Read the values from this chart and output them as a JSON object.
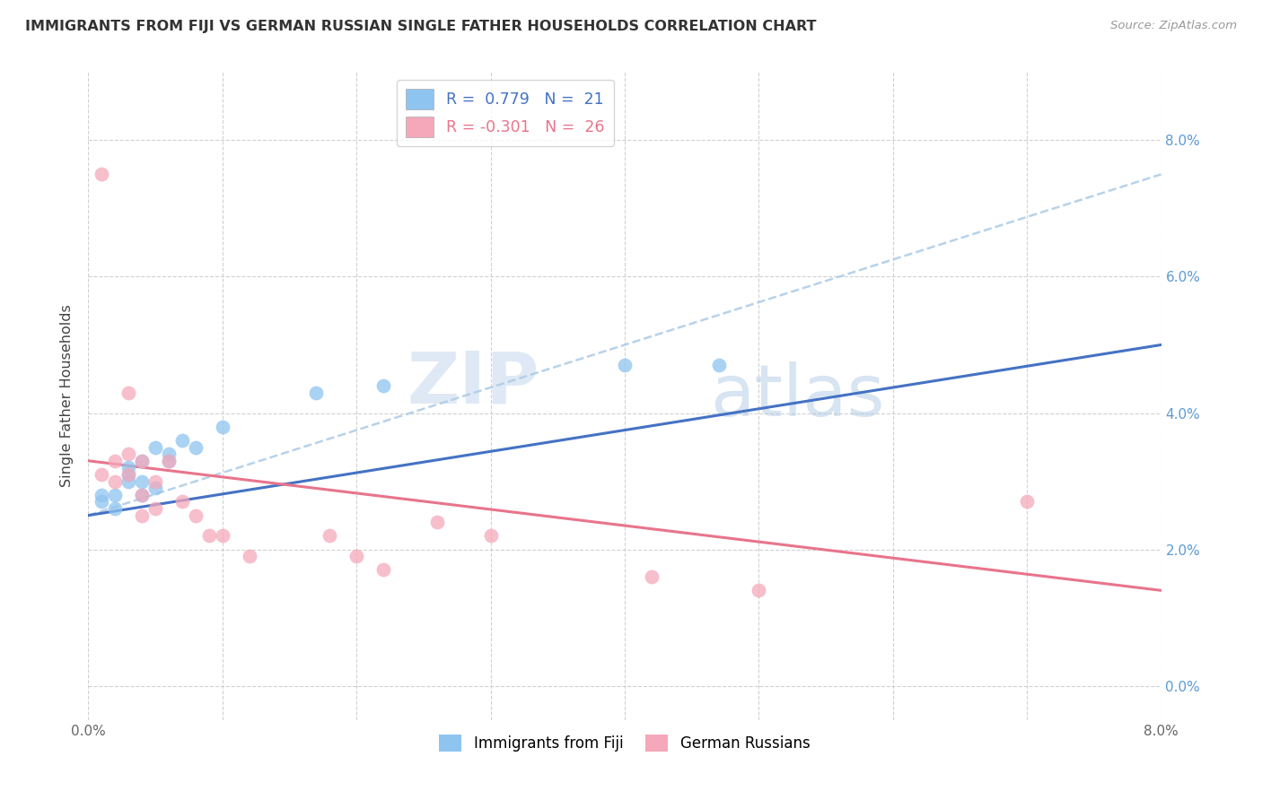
{
  "title": "IMMIGRANTS FROM FIJI VS GERMAN RUSSIAN SINGLE FATHER HOUSEHOLDS CORRELATION CHART",
  "source": "Source: ZipAtlas.com",
  "ylabel": "Single Father Households",
  "fiji_R": 0.779,
  "fiji_N": 21,
  "german_R": -0.301,
  "german_N": 26,
  "fiji_color": "#8EC4F0",
  "german_color": "#F5A8BA",
  "fiji_line_color": "#4472C4",
  "german_line_color": "#E8748C",
  "dashed_line_color": "#B0CDE8",
  "watermark_zip": "ZIP",
  "watermark_atlas": "atlas",
  "xlim": [
    0.0,
    0.08
  ],
  "ylim": [
    -0.005,
    0.09
  ],
  "x_tick_vals": [
    0.0,
    0.01,
    0.02,
    0.03,
    0.04,
    0.05,
    0.06,
    0.07,
    0.08
  ],
  "y_tick_vals": [
    0.0,
    0.02,
    0.04,
    0.06,
    0.08
  ],
  "fiji_points": [
    [
      0.001,
      0.028
    ],
    [
      0.001,
      0.027
    ],
    [
      0.002,
      0.028
    ],
    [
      0.002,
      0.026
    ],
    [
      0.003,
      0.03
    ],
    [
      0.003,
      0.031
    ],
    [
      0.003,
      0.032
    ],
    [
      0.004,
      0.028
    ],
    [
      0.004,
      0.03
    ],
    [
      0.004,
      0.033
    ],
    [
      0.005,
      0.029
    ],
    [
      0.005,
      0.035
    ],
    [
      0.006,
      0.034
    ],
    [
      0.006,
      0.033
    ],
    [
      0.007,
      0.036
    ],
    [
      0.008,
      0.035
    ],
    [
      0.01,
      0.038
    ],
    [
      0.017,
      0.043
    ],
    [
      0.022,
      0.044
    ],
    [
      0.04,
      0.047
    ],
    [
      0.047,
      0.047
    ]
  ],
  "german_points": [
    [
      0.001,
      0.075
    ],
    [
      0.001,
      0.031
    ],
    [
      0.002,
      0.033
    ],
    [
      0.002,
      0.03
    ],
    [
      0.003,
      0.034
    ],
    [
      0.003,
      0.043
    ],
    [
      0.003,
      0.031
    ],
    [
      0.004,
      0.033
    ],
    [
      0.004,
      0.028
    ],
    [
      0.004,
      0.025
    ],
    [
      0.005,
      0.03
    ],
    [
      0.005,
      0.026
    ],
    [
      0.006,
      0.033
    ],
    [
      0.007,
      0.027
    ],
    [
      0.008,
      0.025
    ],
    [
      0.009,
      0.022
    ],
    [
      0.01,
      0.022
    ],
    [
      0.012,
      0.019
    ],
    [
      0.018,
      0.022
    ],
    [
      0.02,
      0.019
    ],
    [
      0.022,
      0.017
    ],
    [
      0.026,
      0.024
    ],
    [
      0.03,
      0.022
    ],
    [
      0.042,
      0.016
    ],
    [
      0.05,
      0.014
    ],
    [
      0.07,
      0.027
    ]
  ],
  "fiji_line_x": [
    0.0,
    0.08
  ],
  "fiji_line_y": [
    0.025,
    0.05
  ],
  "german_line_x": [
    0.0,
    0.08
  ],
  "german_line_y": [
    0.033,
    0.014
  ],
  "dashed_line_x": [
    0.0,
    0.08
  ],
  "dashed_line_y": [
    0.025,
    0.075
  ]
}
